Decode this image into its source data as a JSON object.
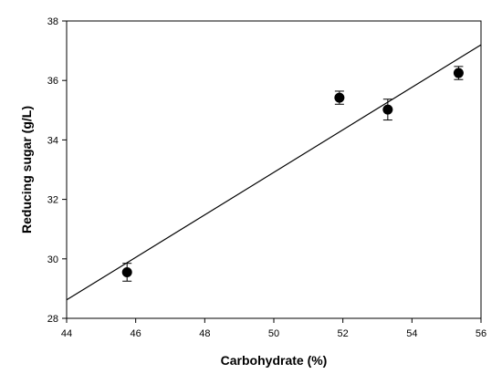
{
  "chart_data": {
    "type": "scatter",
    "xlabel": "Carbohydrate (%)",
    "ylabel": "Reducing sugar (g/L)",
    "xlim": [
      44,
      56
    ],
    "ylim": [
      28,
      38
    ],
    "xticks": [
      "44",
      "46",
      "48",
      "50",
      "52",
      "54",
      "56"
    ],
    "yticks": [
      "28",
      "30",
      "32",
      "34",
      "36",
      "38"
    ],
    "grid": false,
    "points": [
      {
        "x": 45.75,
        "y": 29.55,
        "err": 0.3
      },
      {
        "x": 51.9,
        "y": 35.42,
        "err": 0.22
      },
      {
        "x": 53.3,
        "y": 35.02,
        "err": 0.35
      },
      {
        "x": 55.35,
        "y": 36.25,
        "err": 0.22
      }
    ],
    "fit_line": {
      "x": [
        44,
        56
      ],
      "y": [
        28.62,
        37.2
      ]
    }
  }
}
